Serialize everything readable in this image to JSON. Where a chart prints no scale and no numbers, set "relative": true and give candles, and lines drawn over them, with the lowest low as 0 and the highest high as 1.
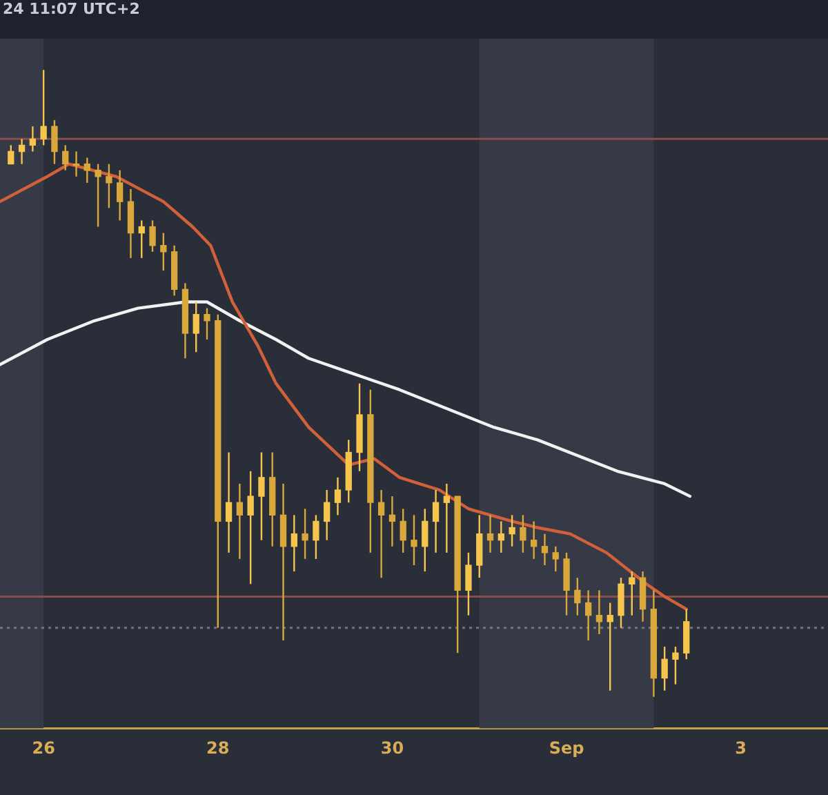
{
  "chart_data": {
    "type": "candlestick",
    "relative": true,
    "annotations": [
      "24 11:07 UTC+2"
    ],
    "xlim": [
      "--08-25T12:00",
      "--09-04T00:00"
    ],
    "xticks": [
      {
        "value": "--08-26",
        "label": "26"
      },
      {
        "value": "--08-28",
        "label": "28"
      },
      {
        "value": "--08-30",
        "label": "30"
      },
      {
        "value": "--09-01",
        "label": "Sep"
      },
      {
        "value": "--09-03",
        "label": "3"
      }
    ],
    "bands": [
      {
        "axis": "x",
        "from": "--08-25T12:00",
        "to": "--08-26T00:00",
        "color": "#363a46"
      },
      {
        "axis": "x",
        "from": "--08-31T00:00",
        "to": "--09-02T00:00",
        "color": "#363a46"
      }
    ],
    "ref_lines": [
      {
        "axis": "y",
        "value": 0.89,
        "color": "#8a4d4a",
        "line_style": "solid"
      },
      {
        "axis": "y",
        "value": 0.16,
        "color": "#8a4d4a",
        "line_style": "solid"
      },
      {
        "axis": "y",
        "value": 0.11,
        "color": "#70747f",
        "line_style": "dotted"
      }
    ],
    "series": [
      {
        "type": "line",
        "color": "#d2603a",
        "x": [
          "--08-25T12:00",
          "--08-26T01:00",
          "--08-26T07:00",
          "--08-26T20:00",
          "--08-27T09:00",
          "--08-27T17:00",
          "--08-27T22:00",
          "--08-28T04:00",
          "--08-28T11:00",
          "--08-28T16:00",
          "--08-29T01:00",
          "--08-29T12:00",
          "--08-29T19:00",
          "--08-30T02:00",
          "--08-30T13:00",
          "--08-30T21:00",
          "--08-31T09:00",
          "--08-31T16:00",
          "--09-01T01:00",
          "--09-01T11:00",
          "--09-01T22:00",
          "--09-02T03:00",
          "--09-02T09:00"
        ],
        "values": [
          0.79,
          0.83,
          0.85,
          0.83,
          0.79,
          0.75,
          0.72,
          0.63,
          0.56,
          0.5,
          0.43,
          0.37,
          0.38,
          0.35,
          0.33,
          0.3,
          0.28,
          0.27,
          0.26,
          0.23,
          0.18,
          0.16,
          0.14
        ]
      },
      {
        "type": "line",
        "color": "#f2f2f2",
        "x": [
          "--08-25T12:00",
          "--08-26T01:00",
          "--08-26T14:00",
          "--08-27T02:00",
          "--08-27T15:00",
          "--08-27T21:00",
          "--08-28T06:00",
          "--08-28T16:00",
          "--08-29T01:00",
          "--08-29T16:00",
          "--08-30T02:00",
          "--08-30T15:00",
          "--08-31T04:00",
          "--08-31T16:00",
          "--09-01T14:00",
          "--09-02T03:00",
          "--09-02T10:00"
        ],
        "values": [
          0.53,
          0.57,
          0.6,
          0.62,
          0.63,
          0.63,
          0.6,
          0.57,
          0.54,
          0.51,
          0.49,
          0.46,
          0.43,
          0.41,
          0.36,
          0.34,
          0.32
        ]
      },
      {
        "colors": [
          "#f5c54e",
          "#f5c54e",
          "#f5c54e",
          "#f5c54e",
          "#d9a83c",
          "#d9a83c",
          "#d9a83c",
          "#d9a83c",
          "#d9a83c",
          "#d9a83c",
          "#d9a83c",
          "#d9a83c",
          "#f5c54e",
          "#d9a83c",
          "#d9a83c",
          "#d9a83c",
          "#d9a83c",
          "#f5c54e",
          "#d9a83c",
          "#d9a83c",
          "#f5c54e",
          "#d9a83c",
          "#f5c54e",
          "#f5c54e",
          "#d9a83c",
          "#d9a83c",
          "#f5c54e",
          "#d9a83c",
          "#f5c54e",
          "#f5c54e",
          "#f5c54e",
          "#f5c54e",
          "#f5c54e",
          "#d9a83c",
          "#d9a83c",
          "#d9a83c",
          "#d9a83c",
          "#d9a83c",
          "#f5c54e",
          "#f5c54e",
          "#f5c54e",
          "#d9a83c",
          "#f5c54e",
          "#f5c54e",
          "#d9a83c",
          "#f5c54e",
          "#f5c54e",
          "#d9a83c",
          "#d9a83c",
          "#d9a83c",
          "#d9a83c",
          "#d9a83c",
          "#d9a83c",
          "#d9a83c",
          "#d9a83c",
          "#f5c54e",
          "#f5c54e",
          "#f5c54e",
          "#d9a83c",
          "#d9a83c",
          "#f5c54e",
          "#f5c54e",
          "#f5c54e"
        ],
        "x": [
          "--08-25T15:00",
          "--08-25T18:00",
          "--08-25T21:00",
          "--08-26T00:00",
          "--08-26T03:00",
          "--08-26T06:00",
          "--08-26T09:00",
          "--08-26T12:00",
          "--08-26T15:00",
          "--08-26T18:00",
          "--08-26T21:00",
          "--08-27T00:00",
          "--08-27T03:00",
          "--08-27T06:00",
          "--08-27T09:00",
          "--08-27T12:00",
          "--08-27T15:00",
          "--08-27T18:00",
          "--08-27T21:00",
          "--08-28T00:00",
          "--08-28T03:00",
          "--08-28T06:00",
          "--08-28T09:00",
          "--08-28T12:00",
          "--08-28T15:00",
          "--08-28T18:00",
          "--08-28T21:00",
          "--08-29T00:00",
          "--08-29T03:00",
          "--08-29T06:00",
          "--08-29T09:00",
          "--08-29T12:00",
          "--08-29T15:00",
          "--08-29T18:00",
          "--08-29T21:00",
          "--08-30T00:00",
          "--08-30T03:00",
          "--08-30T06:00",
          "--08-30T09:00",
          "--08-30T12:00",
          "--08-30T15:00",
          "--08-30T18:00",
          "--08-30T21:00",
          "--08-31T00:00",
          "--08-31T03:00",
          "--08-31T06:00",
          "--08-31T09:00",
          "--08-31T12:00",
          "--08-31T15:00",
          "--08-31T18:00",
          "--08-31T21:00",
          "--09-01T00:00",
          "--09-01T03:00",
          "--09-01T06:00",
          "--09-01T09:00",
          "--09-01T12:00",
          "--09-01T15:00",
          "--09-01T18:00",
          "--09-01T21:00",
          "--09-02T00:00",
          "--09-02T03:00",
          "--09-02T06:00",
          "--09-02T09:00"
        ],
        "ohlc": [
          [
            0.85,
            0.88,
            0.85,
            0.87
          ],
          [
            0.87,
            0.89,
            0.85,
            0.88
          ],
          [
            0.88,
            0.91,
            0.87,
            0.89
          ],
          [
            0.89,
            1.0,
            0.88,
            0.91
          ],
          [
            0.91,
            0.92,
            0.85,
            0.87
          ],
          [
            0.87,
            0.88,
            0.84,
            0.85
          ],
          [
            0.85,
            0.87,
            0.83,
            0.85
          ],
          [
            0.85,
            0.86,
            0.82,
            0.84
          ],
          [
            0.84,
            0.85,
            0.75,
            0.83
          ],
          [
            0.83,
            0.85,
            0.78,
            0.82
          ],
          [
            0.82,
            0.84,
            0.76,
            0.79
          ],
          [
            0.79,
            0.81,
            0.7,
            0.74
          ],
          [
            0.74,
            0.76,
            0.7,
            0.75
          ],
          [
            0.75,
            0.76,
            0.71,
            0.72
          ],
          [
            0.72,
            0.74,
            0.68,
            0.71
          ],
          [
            0.71,
            0.72,
            0.64,
            0.65
          ],
          [
            0.65,
            0.66,
            0.54,
            0.58
          ],
          [
            0.58,
            0.63,
            0.55,
            0.61
          ],
          [
            0.61,
            0.62,
            0.57,
            0.6
          ],
          [
            0.6,
            0.61,
            0.11,
            0.28
          ],
          [
            0.28,
            0.39,
            0.23,
            0.31
          ],
          [
            0.31,
            0.34,
            0.22,
            0.29
          ],
          [
            0.29,
            0.36,
            0.18,
            0.32
          ],
          [
            0.32,
            0.39,
            0.25,
            0.35
          ],
          [
            0.35,
            0.39,
            0.24,
            0.29
          ],
          [
            0.29,
            0.34,
            0.09,
            0.24
          ],
          [
            0.24,
            0.29,
            0.2,
            0.26
          ],
          [
            0.26,
            0.3,
            0.22,
            0.25
          ],
          [
            0.25,
            0.29,
            0.22,
            0.28
          ],
          [
            0.28,
            0.33,
            0.25,
            0.31
          ],
          [
            0.31,
            0.35,
            0.29,
            0.33
          ],
          [
            0.33,
            0.41,
            0.31,
            0.39
          ],
          [
            0.39,
            0.5,
            0.36,
            0.45
          ],
          [
            0.45,
            0.49,
            0.23,
            0.31
          ],
          [
            0.31,
            0.33,
            0.19,
            0.29
          ],
          [
            0.29,
            0.32,
            0.24,
            0.28
          ],
          [
            0.28,
            0.3,
            0.23,
            0.25
          ],
          [
            0.25,
            0.29,
            0.21,
            0.24
          ],
          [
            0.24,
            0.3,
            0.2,
            0.28
          ],
          [
            0.28,
            0.33,
            0.23,
            0.31
          ],
          [
            0.31,
            0.34,
            0.23,
            0.32
          ],
          [
            0.32,
            0.32,
            0.07,
            0.17
          ],
          [
            0.17,
            0.23,
            0.13,
            0.21
          ],
          [
            0.21,
            0.29,
            0.19,
            0.26
          ],
          [
            0.26,
            0.29,
            0.23,
            0.25
          ],
          [
            0.25,
            0.28,
            0.23,
            0.26
          ],
          [
            0.26,
            0.29,
            0.24,
            0.27
          ],
          [
            0.27,
            0.29,
            0.23,
            0.25
          ],
          [
            0.25,
            0.28,
            0.22,
            0.24
          ],
          [
            0.24,
            0.26,
            0.21,
            0.23
          ],
          [
            0.23,
            0.24,
            0.2,
            0.22
          ],
          [
            0.22,
            0.23,
            0.13,
            0.17
          ],
          [
            0.17,
            0.19,
            0.13,
            0.15
          ],
          [
            0.15,
            0.17,
            0.09,
            0.13
          ],
          [
            0.13,
            0.17,
            0.1,
            0.12
          ],
          [
            0.12,
            0.15,
            0.01,
            0.13
          ],
          [
            0.13,
            0.19,
            0.11,
            0.18
          ],
          [
            0.18,
            0.2,
            0.13,
            0.19
          ],
          [
            0.19,
            0.2,
            0.12,
            0.14
          ],
          [
            0.14,
            0.17,
            0.0,
            0.03
          ],
          [
            0.03,
            0.08,
            0.01,
            0.06
          ],
          [
            0.06,
            0.08,
            0.02,
            0.07
          ],
          [
            0.07,
            0.14,
            0.06,
            0.12
          ]
        ]
      }
    ]
  }
}
